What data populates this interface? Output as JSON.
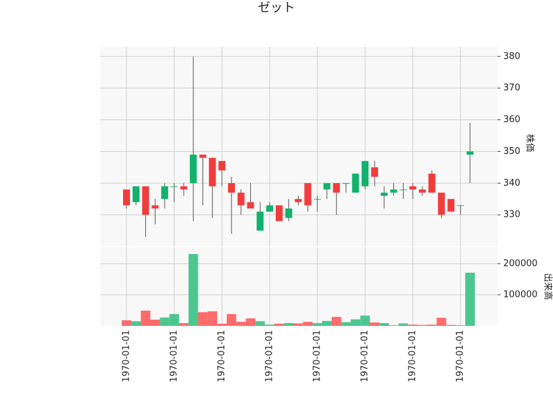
{
  "chart_data": {
    "type": "candlestick",
    "title": "ゼット",
    "categories": [
      "1970-01-01",
      null,
      null,
      null,
      null,
      "1970-01-01",
      null,
      null,
      null,
      null,
      "1970-01-01",
      null,
      null,
      null,
      null,
      "1970-01-01",
      null,
      null,
      null,
      null,
      "1970-01-01",
      null,
      null,
      null,
      null,
      "1970-01-01",
      null,
      null,
      null,
      null,
      "1970-01-01",
      null,
      null,
      null,
      null,
      "1970-01-01",
      null
    ],
    "open": [
      338,
      334,
      339,
      333,
      335,
      339,
      339,
      340,
      349,
      348,
      347,
      340,
      337,
      334,
      325,
      331,
      333,
      329,
      335,
      340,
      335,
      338,
      340,
      340,
      337,
      339,
      345,
      336,
      337,
      338,
      339,
      338,
      343,
      337,
      335,
      333,
      349
    ],
    "high": [
      338,
      339,
      339,
      335,
      340,
      340,
      340,
      380,
      349,
      348,
      347,
      342,
      338,
      340,
      334,
      334,
      333,
      335,
      336,
      340,
      336,
      340,
      340,
      340,
      343,
      347,
      347,
      339,
      340,
      340,
      340,
      339,
      344,
      337,
      335,
      333,
      359
    ],
    "low": [
      332,
      333,
      323,
      327,
      332,
      334,
      336,
      328,
      333,
      329,
      339,
      324,
      330,
      332,
      325,
      331,
      328,
      328,
      333,
      331,
      331,
      335,
      330,
      337,
      337,
      338,
      339,
      332,
      336,
      335,
      335,
      336,
      337,
      329,
      331,
      330,
      340
    ],
    "close": [
      333,
      339,
      330,
      332,
      339,
      339,
      338,
      349,
      348,
      339,
      344,
      337,
      333,
      332,
      331,
      333,
      328,
      332,
      334,
      333,
      335,
      340,
      337,
      340,
      343,
      347,
      342,
      337,
      338,
      338,
      338,
      337,
      337,
      330,
      331,
      333,
      350
    ],
    "volume": [
      18000,
      15000,
      49000,
      20000,
      27000,
      38000,
      9000,
      231000,
      44000,
      47000,
      7000,
      38000,
      13000,
      24000,
      15000,
      4000,
      7000,
      9000,
      8000,
      13000,
      9000,
      16000,
      29000,
      12000,
      21000,
      33000,
      11000,
      9000,
      2000,
      8000,
      4000,
      3000,
      4000,
      26000,
      3000,
      2000,
      171000
    ],
    "up_color": "#10b26c",
    "down_color": "#f23c3c",
    "volume_up_color": "#4cc78f",
    "volume_down_color": "#ff6b6b",
    "ylim": [
      320,
      383
    ],
    "yticks": [
      330,
      340,
      350,
      360,
      370,
      380
    ],
    "ylabel": "株価",
    "volume_ylim": [
      0,
      253000
    ],
    "volume_yticks": [
      100000,
      200000
    ],
    "volume_ylabel": "出来高",
    "grid": true
  }
}
